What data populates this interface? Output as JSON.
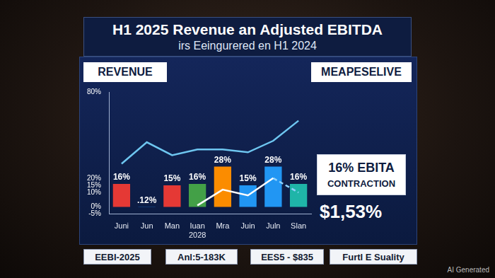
{
  "chart_data": {
    "type": "bar",
    "title": "H1 2025 Revenue an Adjusted EBITDA",
    "subtitle": "irs Eeingurered en H1 2024",
    "categories": [
      "Juni",
      "Jun",
      "Man",
      "Iuan 2028",
      "Mra",
      "Juin",
      "Juln",
      "Slan"
    ],
    "values": [
      16,
      0.12,
      15,
      16,
      28,
      15,
      28,
      16
    ],
    "value_labels": [
      "16%",
      ".12%",
      "15%",
      "16%",
      "28%",
      "15%",
      "28%",
      "16%"
    ],
    "data_labels": true,
    "colors": [
      "#e53935",
      "#1e88e5",
      "#e53935",
      "#43a047",
      "#fb8c00",
      "#2196f3",
      "#2196f3",
      "#1fb5a8"
    ],
    "ylim": [
      -5,
      80
    ],
    "yticks": [
      {
        "value": -5,
        "label": "-5%"
      },
      {
        "value": 0,
        "label": "0%"
      },
      {
        "value": 10,
        "label": "10%"
      },
      {
        "value": 15,
        "label": "15%"
      },
      {
        "value": 20,
        "label": "20%"
      },
      {
        "value": 80,
        "label": "80%"
      }
    ],
    "grid": false,
    "series": [
      {
        "type": "line",
        "color": "#6ec6f0",
        "line_style": "solid",
        "marker": "none",
        "values": [
          30,
          45,
          36,
          40,
          40,
          38,
          46,
          60
        ]
      },
      {
        "type": "line",
        "color": "#ffffff",
        "line_style": "solid",
        "marker": "none",
        "values": [
          null,
          null,
          null,
          1,
          12,
          8,
          20,
          null
        ]
      },
      {
        "type": "line",
        "color": "#8fd3ff",
        "line_style": "dashed",
        "marker": "none",
        "values": [
          null,
          null,
          null,
          null,
          null,
          null,
          20,
          10
        ]
      }
    ],
    "annotations": [
      "16% EBITA",
      "CONTRACTION",
      "$1,53%"
    ]
  },
  "header_boxes": [
    "REVENUE",
    "MEAPESELIVE"
  ],
  "footer_boxes": [
    "EEBI-2025",
    "Anl:5-183K",
    "EES5 - $835",
    "Furtl E Suality"
  ],
  "watermark": "AI Generated"
}
